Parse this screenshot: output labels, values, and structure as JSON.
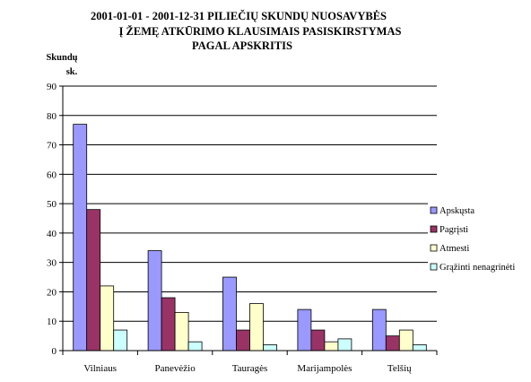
{
  "chart_data": {
    "type": "bar",
    "title": [
      "2001-01-01 - 2001-12-31 PILIEČIŲ SKUNDŲ NUOSAVYBĖS",
      "Į ŽEMĘ ATKŪRIMO KLAUSIMAIS PASISKIRSTYMAS",
      "PAGAL APSKRITIS"
    ],
    "ylabel": [
      "Skundų",
      "sk."
    ],
    "xlabel": "",
    "ylim": [
      0,
      90
    ],
    "yticks": [
      0,
      10,
      20,
      30,
      40,
      50,
      60,
      70,
      80,
      90
    ],
    "grid": true,
    "legend_position": "right",
    "categories": [
      "Vilniaus",
      "Panevėžio",
      "Tauragės",
      "Marijampolės",
      "Telšių"
    ],
    "series": [
      {
        "name": "Apskųsta",
        "color": "#9999ff",
        "values": [
          77,
          34,
          25,
          14,
          14
        ]
      },
      {
        "name": "Pagrįsti",
        "color": "#993366",
        "values": [
          48,
          18,
          7,
          7,
          5
        ]
      },
      {
        "name": "Atmesti",
        "color": "#ffffcc",
        "values": [
          22,
          13,
          16,
          3,
          7
        ]
      },
      {
        "name": "Grąžinti nenagrinėti",
        "color": "#ccffff",
        "values": [
          7,
          3,
          2,
          4,
          2
        ]
      }
    ]
  }
}
